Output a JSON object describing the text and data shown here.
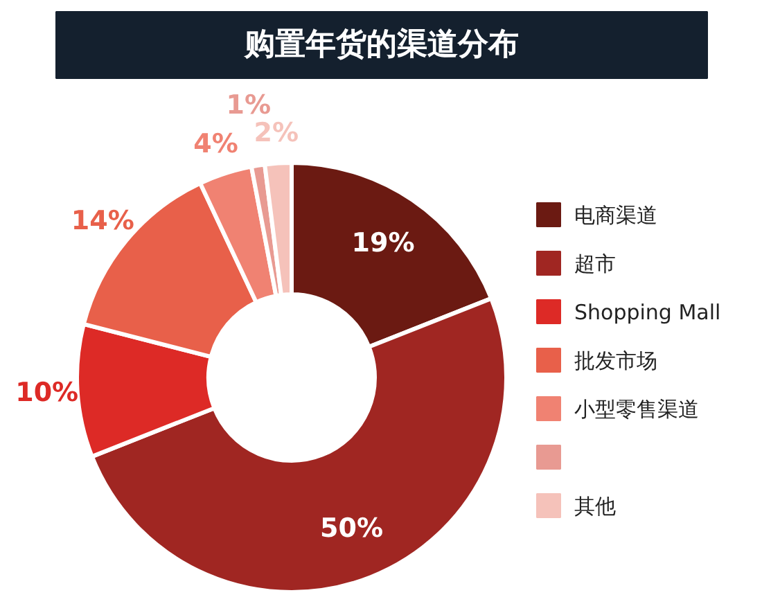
{
  "chart_data": {
    "type": "donut",
    "title": "购置年货的渠道分布",
    "categories": [
      "电商渠道",
      "超市",
      "Shopping Mall",
      "批发市场",
      "小型零售渠道",
      null,
      "其他"
    ],
    "values": [
      19,
      50,
      10,
      14,
      4,
      1,
      2
    ],
    "value_labels": [
      "19%",
      "50%",
      "10%",
      "14%",
      "4%",
      "1%",
      "2%"
    ],
    "colors": [
      "#6b1a12",
      "#a02622",
      "#dd2a26",
      "#e8604a",
      "#f08272",
      "#e89a92",
      "#f5c2ba"
    ],
    "legend": "right"
  }
}
